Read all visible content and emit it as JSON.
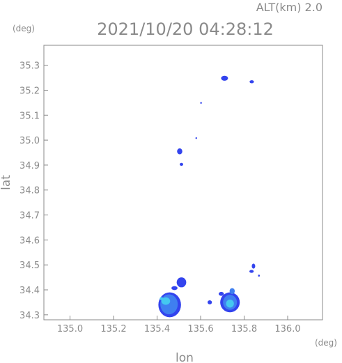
{
  "chart_data": {
    "type": "scatter",
    "title": "2021/10/20 04:28:12",
    "altitude_label": "ALT(km)  2.0",
    "xlabel": "lon",
    "ylabel": "lat",
    "x_unit": "(deg)",
    "y_unit": "(deg)",
    "xlim": [
      134.88,
      136.16
    ],
    "ylim": [
      34.28,
      35.38
    ],
    "xticks": [
      "135.0",
      "135.2",
      "135.4",
      "135.6",
      "135.8",
      "136.0"
    ],
    "xtick_values": [
      135.0,
      135.2,
      135.4,
      135.6,
      135.8,
      136.0
    ],
    "yticks": [
      "34.3",
      "34.4",
      "34.5",
      "34.6",
      "34.7",
      "34.8",
      "34.9",
      "35.0",
      "35.1",
      "35.2",
      "35.3"
    ],
    "ytick_values": [
      34.3,
      34.4,
      34.5,
      34.6,
      34.7,
      34.8,
      34.9,
      35.0,
      35.1,
      35.2,
      35.3
    ],
    "grid": false,
    "colors": {
      "weak": "#3344ee",
      "moderate": "#3f7ff0",
      "strong": "#44c8f0",
      "axis": "#8a8a8a"
    },
    "echo_cells": [
      {
        "lon": 135.71,
        "lat": 35.248,
        "rx": 0.016,
        "ry": 0.01,
        "level": "weak"
      },
      {
        "lon": 135.835,
        "lat": 35.234,
        "rx": 0.01,
        "ry": 0.006,
        "level": "weak"
      },
      {
        "lon": 135.602,
        "lat": 35.149,
        "rx": 0.004,
        "ry": 0.003,
        "level": "weak"
      },
      {
        "lon": 135.58,
        "lat": 35.008,
        "rx": 0.003,
        "ry": 0.002,
        "level": "weak"
      },
      {
        "lon": 135.504,
        "lat": 34.955,
        "rx": 0.012,
        "ry": 0.012,
        "level": "weak"
      },
      {
        "lon": 135.512,
        "lat": 34.903,
        "rx": 0.008,
        "ry": 0.006,
        "level": "weak"
      },
      {
        "lon": 135.843,
        "lat": 34.495,
        "rx": 0.008,
        "ry": 0.01,
        "level": "weak"
      },
      {
        "lon": 135.834,
        "lat": 34.474,
        "rx": 0.01,
        "ry": 0.006,
        "level": "weak"
      },
      {
        "lon": 135.868,
        "lat": 34.457,
        "rx": 0.004,
        "ry": 0.004,
        "level": "weak"
      },
      {
        "lon": 135.512,
        "lat": 34.43,
        "rx": 0.022,
        "ry": 0.02,
        "level": "weak"
      },
      {
        "lon": 135.48,
        "lat": 34.407,
        "rx": 0.014,
        "ry": 0.008,
        "level": "weak"
      },
      {
        "lon": 135.458,
        "lat": 34.34,
        "rx": 0.052,
        "ry": 0.05,
        "level": "weak"
      },
      {
        "lon": 135.455,
        "lat": 34.342,
        "rx": 0.04,
        "ry": 0.04,
        "level": "moderate"
      },
      {
        "lon": 135.44,
        "lat": 34.355,
        "rx": 0.02,
        "ry": 0.015,
        "level": "strong"
      },
      {
        "lon": 135.42,
        "lat": 34.365,
        "rx": 0.008,
        "ry": 0.006,
        "level": "strong"
      },
      {
        "lon": 135.735,
        "lat": 34.35,
        "rx": 0.045,
        "ry": 0.04,
        "level": "weak"
      },
      {
        "lon": 135.735,
        "lat": 34.35,
        "rx": 0.032,
        "ry": 0.03,
        "level": "moderate"
      },
      {
        "lon": 135.735,
        "lat": 34.345,
        "rx": 0.018,
        "ry": 0.016,
        "level": "strong"
      },
      {
        "lon": 135.745,
        "lat": 34.395,
        "rx": 0.012,
        "ry": 0.012,
        "level": "moderate"
      },
      {
        "lon": 135.695,
        "lat": 34.384,
        "rx": 0.012,
        "ry": 0.008,
        "level": "weak"
      },
      {
        "lon": 135.642,
        "lat": 34.35,
        "rx": 0.01,
        "ry": 0.008,
        "level": "weak"
      }
    ]
  }
}
